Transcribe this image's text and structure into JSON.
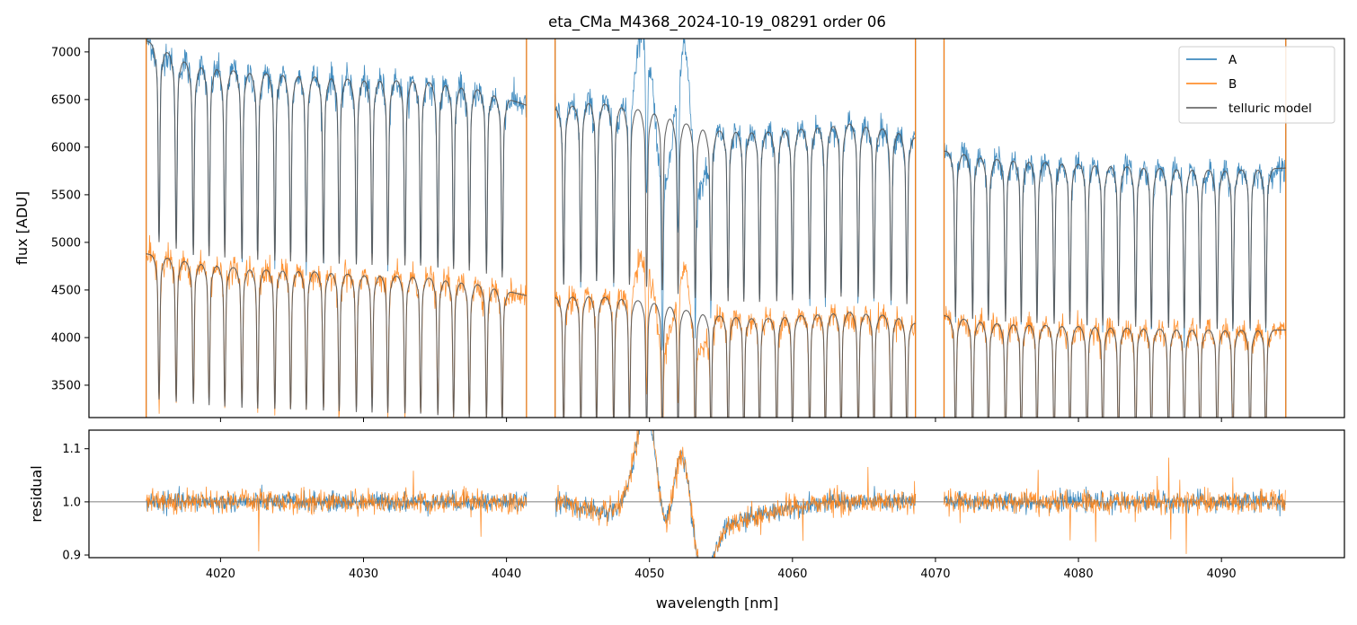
{
  "chart_data": [
    {
      "type": "line",
      "panel": "flux",
      "title": "eta_CMa_M4368_2024-10-19_08291  order 06",
      "xlabel": "",
      "ylabel": "flux [ADU]",
      "xlim": [
        4010.8,
        4098.6
      ],
      "ylim": [
        3160,
        7140
      ],
      "yticks": [
        "3500",
        "4000",
        "4500",
        "5000",
        "5500",
        "6000",
        "6500",
        "7000"
      ],
      "grid": false,
      "legend_position": "top-right",
      "segments": [
        [
          4014.8,
          4041.4
        ],
        [
          4043.4,
          4068.6
        ],
        [
          4070.6,
          4094.5
        ]
      ],
      "absorption_lines": [
        4015.7,
        4016.9,
        4018.1,
        4019.2,
        4020.3,
        4021.5,
        4022.6,
        4023.8,
        4024.9,
        4026.0,
        4027.2,
        4028.3,
        4029.5,
        4030.6,
        4031.7,
        4032.9,
        4034.0,
        4035.2,
        4036.3,
        4037.4,
        4038.6,
        4039.7,
        4044.0,
        4045.2,
        4046.3,
        4047.5,
        4048.6,
        4049.8,
        4050.9,
        4052.0,
        4053.2,
        4054.3,
        4055.5,
        4056.6,
        4057.7,
        4058.9,
        4060.0,
        4061.2,
        4062.3,
        4063.4,
        4064.6,
        4065.7,
        4066.9,
        4068.0,
        4071.4,
        4072.6,
        4073.7,
        4074.9,
        4076.0,
        4077.1,
        4078.3,
        4079.4,
        4080.6,
        4081.7,
        4082.8,
        4084.0,
        4085.1,
        4086.3,
        4087.4,
        4088.5,
        4089.7,
        4090.8,
        4092.0,
        4093.1
      ],
      "series": [
        {
          "name": "A",
          "color": "#1f77b4",
          "continuum_x": [
            4014.8,
            4018,
            4022,
            4026,
            4030,
            4034,
            4038,
            4041.4,
            4043.4,
            4046,
            4050,
            4054,
            4058,
            4061,
            4064,
            4067,
            4068.6,
            4070.6,
            4074,
            4078,
            4082,
            4086,
            4090,
            4094.5
          ],
          "continuum_y": [
            7120,
            6860,
            6790,
            6750,
            6710,
            6700,
            6610,
            6440,
            6400,
            6480,
            6380,
            6180,
            6160,
            6200,
            6250,
            6180,
            6100,
            5960,
            5880,
            5840,
            5810,
            5780,
            5760,
            5780
          ],
          "line_depth": 0.24
        },
        {
          "name": "B",
          "color": "#ff7f0e",
          "continuum_x": [
            4014.8,
            4018,
            4022,
            4026,
            4030,
            4034,
            4038,
            4041.4,
            4043.4,
            4046,
            4050,
            4054,
            4058,
            4061,
            4064,
            4067,
            4068.6,
            4070.6,
            4074,
            4078,
            4082,
            4086,
            4090,
            4094.5
          ],
          "continuum_y": [
            4880,
            4790,
            4720,
            4700,
            4660,
            4640,
            4560,
            4440,
            4420,
            4440,
            4380,
            4240,
            4200,
            4240,
            4270,
            4230,
            4150,
            4230,
            4150,
            4130,
            4110,
            4090,
            4080,
            4080
          ],
          "line_depth": 0.26
        },
        {
          "name": "telluric model",
          "color": "#555555"
        }
      ],
      "emission_features": [
        {
          "center": 4049.7,
          "width": 0.55,
          "height_A": 1050,
          "height_B": 560
        },
        {
          "center": 4052.3,
          "width": 0.5,
          "height_A": 1000,
          "height_B": 520
        },
        {
          "center": 4051.0,
          "width": 0.7,
          "height_A": -700,
          "height_B": -420
        },
        {
          "center": 4053.5,
          "width": 0.5,
          "height_A": -600,
          "height_B": -360
        }
      ]
    },
    {
      "type": "line",
      "panel": "residual",
      "xlabel": "wavelength [nm]",
      "ylabel": "residual",
      "xlim": [
        4010.8,
        4098.6
      ],
      "ylim": [
        0.895,
        1.135
      ],
      "yticks": [
        "0.9",
        "1.0",
        "1.1"
      ],
      "xticks": [
        "4020",
        "4030",
        "4040",
        "4050",
        "4060",
        "4070",
        "4080",
        "4090"
      ],
      "reference_line": 1.0,
      "grid": false,
      "series": [
        {
          "name": "A",
          "color": "#1f77b4",
          "noise": 0.009
        },
        {
          "name": "B",
          "color": "#ff7f0e",
          "noise": 0.011
        }
      ],
      "features": [
        {
          "center": 4050.0,
          "width": 0.85,
          "amplitude": 0.22
        },
        {
          "center": 4052.3,
          "width": 0.8,
          "amplitude": 0.22
        },
        {
          "center": 4051.1,
          "width": 0.7,
          "amplitude": -0.18
        },
        {
          "center": 4053.4,
          "width": 0.9,
          "amplitude": -0.17
        },
        {
          "center": 4055.5,
          "width": 2.8,
          "amplitude": -0.035
        },
        {
          "center": 4047.0,
          "width": 1.5,
          "amplitude": -0.02
        }
      ]
    }
  ]
}
